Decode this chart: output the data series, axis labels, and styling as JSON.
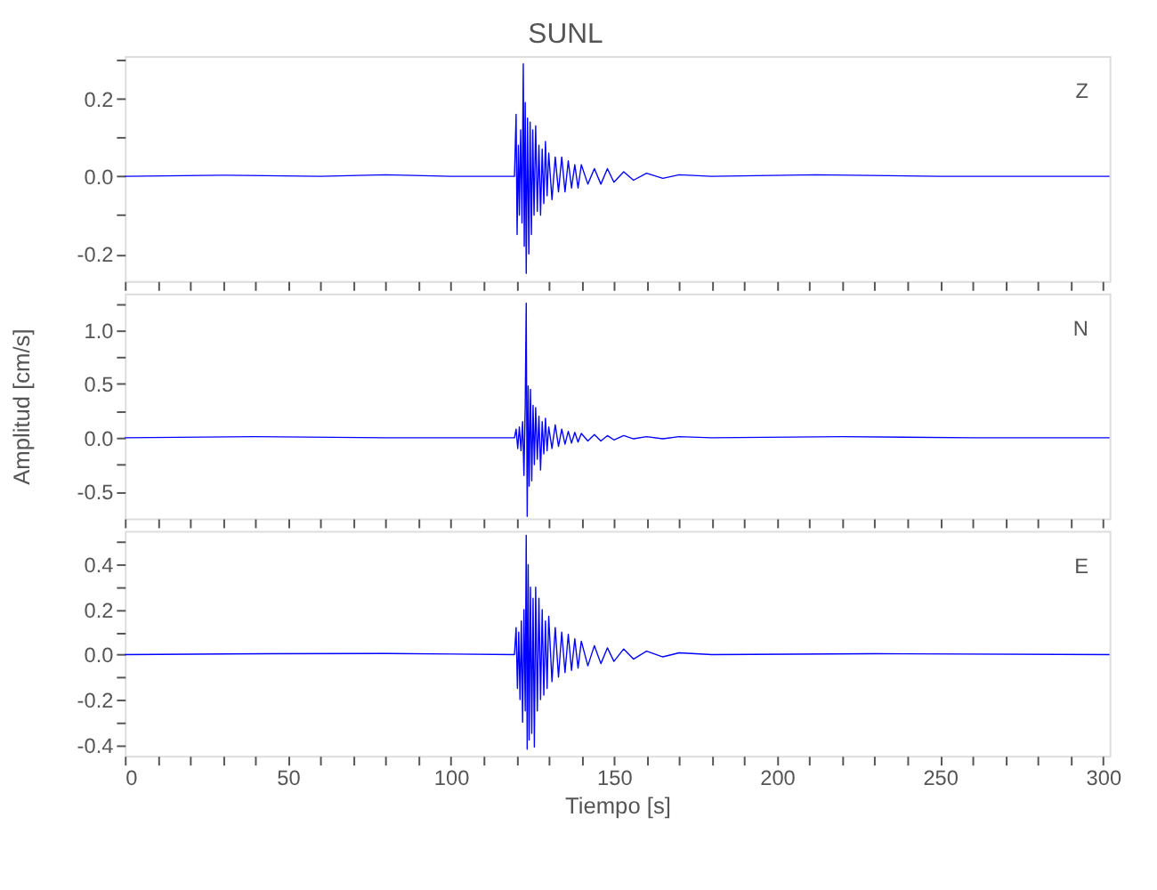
{
  "chart_data": [
    {
      "type": "line",
      "title": "SUNL",
      "annotations": [
        "Z"
      ],
      "grid": false,
      "tick_labels": "y",
      "xlim": [
        0,
        302
      ],
      "xticks": [
        0,
        {
          "value": 10,
          "label": null
        },
        {
          "value": 20,
          "label": null
        },
        {
          "value": 30,
          "label": null
        },
        {
          "value": 40,
          "label": null
        },
        50,
        {
          "value": 60,
          "label": null
        },
        {
          "value": 70,
          "label": null
        },
        {
          "value": 80,
          "label": null
        },
        {
          "value": 90,
          "label": null
        },
        100,
        {
          "value": 110,
          "label": null
        },
        {
          "value": 120,
          "label": null
        },
        {
          "value": 130,
          "label": null
        },
        {
          "value": 140,
          "label": null
        },
        150,
        {
          "value": 160,
          "label": null
        },
        {
          "value": 170,
          "label": null
        },
        {
          "value": 180,
          "label": null
        },
        {
          "value": 190,
          "label": null
        },
        200,
        {
          "value": 210,
          "label": null
        },
        {
          "value": 220,
          "label": null
        },
        {
          "value": 230,
          "label": null
        },
        {
          "value": 240,
          "label": null
        },
        250,
        {
          "value": 260,
          "label": null
        },
        {
          "value": 270,
          "label": null
        },
        {
          "value": 280,
          "label": null
        },
        {
          "value": 290,
          "label": null
        },
        300
      ],
      "ylim": [
        -0.27,
        0.31
      ],
      "yticks": [
        {
          "value": -0.2,
          "label": "-0.2"
        },
        {
          "value": -0.1,
          "label": null
        },
        {
          "value": 0,
          "label": "0.0"
        },
        {
          "value": 0.1,
          "label": null
        },
        {
          "value": 0.2,
          "label": "0.2"
        },
        {
          "value": 0.3,
          "label": null
        }
      ],
      "series": [
        {
          "color": "#0000ff",
          "x": [
            0,
            30,
            60,
            80,
            100,
            119.5,
            120,
            120.3,
            120.7,
            121,
            121.4,
            121.8,
            122.2,
            122.5,
            122.8,
            123.1,
            123.5,
            123.9,
            124.3,
            124.7,
            125.1,
            125.5,
            126,
            126.5,
            127,
            127.5,
            128,
            128.5,
            129,
            129.5,
            130,
            131,
            132,
            133,
            134,
            135,
            136,
            137,
            138,
            139,
            140,
            142,
            144,
            146,
            148,
            150,
            153,
            156,
            160,
            165,
            170,
            180,
            212,
            250,
            302
          ],
          "values": [
            0,
            0.003,
            0,
            0.004,
            0,
            0,
            0.16,
            -0.15,
            0.08,
            -0.1,
            0.12,
            -0.12,
            0.29,
            -0.18,
            0.19,
            -0.25,
            0.15,
            -0.2,
            0.14,
            -0.15,
            0.12,
            -0.1,
            0.13,
            -0.09,
            0.08,
            -0.1,
            0.07,
            -0.07,
            0.09,
            -0.05,
            0.06,
            -0.06,
            0.05,
            -0.04,
            0.05,
            -0.04,
            0.04,
            -0.03,
            0.03,
            -0.03,
            0.03,
            -0.02,
            0.02,
            -0.02,
            0.02,
            -0.015,
            0.012,
            -0.01,
            0.008,
            -0.005,
            0.004,
            0,
            0.004,
            0,
            0
          ]
        }
      ]
    },
    {
      "type": "line",
      "ylabel": "Amplitud  [cm/s]",
      "annotations": [
        "N"
      ],
      "grid": false,
      "tick_labels": "y",
      "xlim": [
        0,
        302
      ],
      "xticks": [
        0,
        {
          "value": 10,
          "label": null
        },
        {
          "value": 20,
          "label": null
        },
        {
          "value": 30,
          "label": null
        },
        {
          "value": 40,
          "label": null
        },
        50,
        {
          "value": 60,
          "label": null
        },
        {
          "value": 70,
          "label": null
        },
        {
          "value": 80,
          "label": null
        },
        {
          "value": 90,
          "label": null
        },
        100,
        {
          "value": 110,
          "label": null
        },
        {
          "value": 120,
          "label": null
        },
        {
          "value": 130,
          "label": null
        },
        {
          "value": 140,
          "label": null
        },
        150,
        {
          "value": 160,
          "label": null
        },
        {
          "value": 170,
          "label": null
        },
        {
          "value": 180,
          "label": null
        },
        {
          "value": 190,
          "label": null
        },
        200,
        {
          "value": 210,
          "label": null
        },
        {
          "value": 220,
          "label": null
        },
        {
          "value": 230,
          "label": null
        },
        {
          "value": 240,
          "label": null
        },
        250,
        {
          "value": 260,
          "label": null
        },
        {
          "value": 270,
          "label": null
        },
        {
          "value": 280,
          "label": null
        },
        {
          "value": 290,
          "label": null
        },
        300
      ],
      "ylim": [
        -0.75,
        1.34
      ],
      "yticks": [
        {
          "value": -0.5,
          "label": "-0.5"
        },
        {
          "value": -0.25,
          "label": null
        },
        {
          "value": 0,
          "label": "0.0"
        },
        {
          "value": 0.25,
          "label": null
        },
        0.5,
        {
          "value": 0.75,
          "label": null
        },
        {
          "value": 1,
          "label": "1.0"
        },
        {
          "value": 1.25,
          "label": null
        }
      ],
      "series": [
        {
          "color": "#0000ff",
          "x": [
            0,
            40,
            80,
            119.5,
            120,
            120.5,
            121,
            121.5,
            122,
            122.4,
            122.8,
            123.1,
            123.4,
            123.7,
            124,
            124.4,
            124.8,
            125.2,
            125.6,
            126,
            126.5,
            127,
            127.5,
            128,
            128.5,
            129,
            129.5,
            130,
            131,
            132,
            133,
            134,
            135,
            136,
            137,
            138,
            139,
            140,
            142,
            144,
            146,
            148,
            150,
            153,
            156,
            160,
            165,
            170,
            180,
            220,
            260,
            302
          ],
          "values": [
            0,
            0.01,
            0,
            0,
            0.08,
            -0.1,
            0.1,
            -0.12,
            0.15,
            -0.35,
            0.3,
            1.25,
            -0.73,
            0.48,
            -0.45,
            0.45,
            -0.4,
            0.3,
            -0.25,
            0.28,
            -0.2,
            0.2,
            -0.3,
            0.15,
            -0.15,
            0.18,
            -0.12,
            0.1,
            -0.1,
            0.12,
            -0.08,
            0.08,
            -0.06,
            0.06,
            -0.05,
            0.05,
            -0.04,
            0.04,
            -0.03,
            0.03,
            -0.03,
            0.02,
            -0.02,
            0.02,
            -0.01,
            0.01,
            -0.01,
            0.01,
            0,
            0.01,
            0,
            0
          ]
        }
      ]
    },
    {
      "type": "line",
      "xlabel": "Tiempo  [s]",
      "annotations": [
        "E"
      ],
      "grid": false,
      "xlim": [
        0,
        302
      ],
      "xticks": [
        0,
        {
          "value": 10,
          "label": null
        },
        {
          "value": 20,
          "label": null
        },
        {
          "value": 30,
          "label": null
        },
        {
          "value": 40,
          "label": null
        },
        50,
        {
          "value": 60,
          "label": null
        },
        {
          "value": 70,
          "label": null
        },
        {
          "value": 80,
          "label": null
        },
        {
          "value": 90,
          "label": null
        },
        100,
        {
          "value": 110,
          "label": null
        },
        {
          "value": 120,
          "label": null
        },
        {
          "value": 130,
          "label": null
        },
        {
          "value": 140,
          "label": null
        },
        150,
        {
          "value": 160,
          "label": null
        },
        {
          "value": 170,
          "label": null
        },
        {
          "value": 180,
          "label": null
        },
        {
          "value": 190,
          "label": null
        },
        200,
        {
          "value": 210,
          "label": null
        },
        {
          "value": 220,
          "label": null
        },
        {
          "value": 230,
          "label": null
        },
        {
          "value": 240,
          "label": null
        },
        250,
        {
          "value": 260,
          "label": null
        },
        {
          "value": 270,
          "label": null
        },
        {
          "value": 280,
          "label": null
        },
        {
          "value": 290,
          "label": null
        },
        300
      ],
      "ylim": [
        -0.45,
        0.55
      ],
      "yticks": [
        {
          "value": -0.4,
          "label": "-0.4"
        },
        {
          "value": -0.3,
          "label": null
        },
        {
          "value": -0.2,
          "label": "-0.2"
        },
        {
          "value": -0.1,
          "label": null
        },
        {
          "value": 0,
          "label": "0.0"
        },
        {
          "value": 0.1,
          "label": null
        },
        0.2,
        {
          "value": 0.3,
          "label": null
        },
        0.4,
        {
          "value": 0.5,
          "label": null
        }
      ],
      "series": [
        {
          "color": "#0000ff",
          "x": [
            0,
            45,
            80,
            119.5,
            120,
            120.4,
            120.8,
            121.2,
            121.6,
            122,
            122.4,
            122.8,
            123.1,
            123.4,
            123.7,
            124,
            124.4,
            124.8,
            125.2,
            125.6,
            126,
            126.5,
            127,
            127.5,
            128,
            128.5,
            129,
            129.5,
            130,
            131,
            132,
            133,
            134,
            135,
            136,
            137,
            138,
            139,
            140,
            142,
            144,
            146,
            148,
            150,
            153,
            156,
            160,
            165,
            170,
            180,
            230,
            302
          ],
          "values": [
            0,
            0.004,
            0.005,
            0,
            0.12,
            -0.15,
            0.1,
            -0.2,
            0.15,
            -0.3,
            0.2,
            -0.25,
            0.53,
            -0.42,
            0.4,
            -0.38,
            0.3,
            -0.35,
            0.25,
            -0.41,
            0.3,
            -0.25,
            0.25,
            -0.2,
            0.2,
            -0.18,
            0.15,
            -0.15,
            0.17,
            -0.12,
            0.12,
            -0.1,
            0.1,
            -0.08,
            0.09,
            -0.07,
            0.07,
            -0.06,
            0.06,
            -0.05,
            0.04,
            -0.04,
            0.03,
            -0.03,
            0.025,
            -0.02,
            0.015,
            -0.01,
            0.008,
            0,
            0.004,
            0
          ]
        }
      ]
    }
  ]
}
